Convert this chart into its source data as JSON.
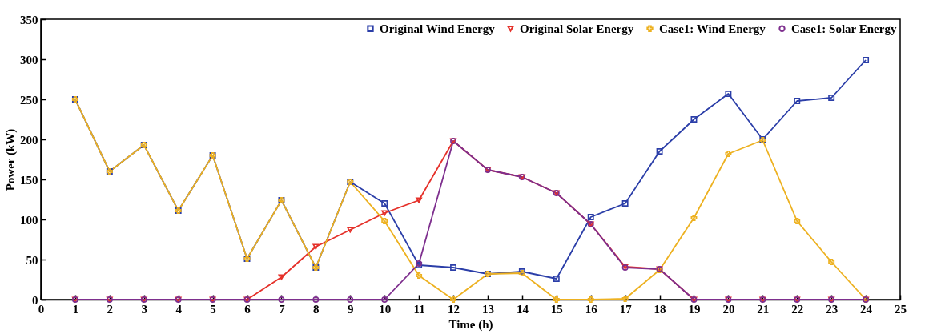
{
  "chart_data": {
    "type": "line",
    "xlabel": "Time (h)",
    "ylabel": "Power (kW)",
    "x": [
      1,
      2,
      3,
      4,
      5,
      6,
      7,
      8,
      9,
      10,
      11,
      12,
      13,
      14,
      15,
      16,
      17,
      18,
      19,
      20,
      21,
      22,
      23,
      24
    ],
    "xlim": [
      0,
      25
    ],
    "xticks": [
      0,
      1,
      2,
      3,
      4,
      5,
      6,
      7,
      8,
      9,
      10,
      11,
      12,
      13,
      14,
      15,
      16,
      17,
      18,
      19,
      20,
      21,
      22,
      23,
      24,
      25
    ],
    "ylim": [
      0,
      350
    ],
    "yticks": [
      0,
      50,
      100,
      150,
      200,
      250,
      300,
      350
    ],
    "grid": false,
    "legend": "top right",
    "series": [
      {
        "name": "Original Wind Energy",
        "color": "#2b3ea8",
        "marker": "square",
        "values": [
          250,
          160,
          193,
          111,
          180,
          51,
          124,
          40,
          147,
          120,
          43,
          40,
          32,
          35,
          26,
          103,
          120,
          185,
          225,
          257,
          200,
          248,
          252,
          299
        ]
      },
      {
        "name": "Original Solar Energy",
        "color": "#e5312a",
        "marker": "triangle",
        "values": [
          0,
          0,
          0,
          0,
          0,
          0,
          28,
          66,
          87,
          108,
          124,
          198,
          162,
          153,
          133,
          94,
          41,
          38,
          0,
          0,
          0,
          0,
          0,
          0
        ]
      },
      {
        "name": "Case1: Wind Energy",
        "color": "#edb120",
        "marker": "cross",
        "values": [
          250,
          160,
          193,
          111,
          180,
          51,
          124,
          40,
          147,
          98,
          30,
          0,
          32,
          33,
          0,
          0,
          1,
          37,
          102,
          182,
          199,
          98,
          47,
          0
        ]
      },
      {
        "name": "Case1: Solar Energy",
        "color": "#7e2f8e",
        "marker": "circle",
        "values": [
          0,
          0,
          0,
          0,
          0,
          0,
          0,
          0,
          0,
          0,
          45,
          198,
          162,
          153,
          133,
          94,
          40,
          38,
          0,
          0,
          0,
          0,
          0,
          0
        ]
      }
    ]
  }
}
